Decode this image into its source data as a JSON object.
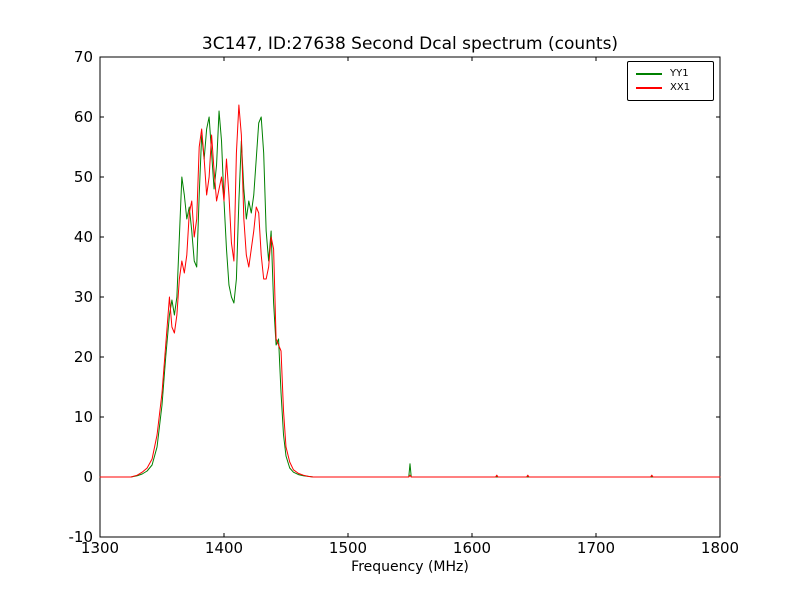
{
  "chart_data": {
    "type": "line",
    "title": "3C147, ID:27638 Second Dcal spectrum (counts)",
    "xlabel": "Frequency (MHz)",
    "ylabel": "",
    "xlim": [
      1300,
      1800
    ],
    "ylim": [
      -10,
      70
    ],
    "xticks": [
      1300,
      1400,
      1500,
      1600,
      1700,
      1800
    ],
    "yticks": [
      -10,
      0,
      10,
      20,
      30,
      40,
      50,
      60,
      70
    ],
    "grid": false,
    "legend_position": "upper right",
    "axis_color": "#000000",
    "x": [
      1300,
      1305,
      1310,
      1315,
      1320,
      1325,
      1330,
      1334,
      1338,
      1342,
      1346,
      1350,
      1353,
      1356,
      1358,
      1360,
      1362,
      1364,
      1366,
      1368,
      1370,
      1372,
      1374,
      1376,
      1378,
      1380,
      1382,
      1384,
      1386,
      1388,
      1390,
      1392,
      1394,
      1396,
      1398,
      1400,
      1402,
      1404,
      1406,
      1408,
      1410,
      1412,
      1414,
      1416,
      1418,
      1420,
      1422,
      1424,
      1426,
      1428,
      1430,
      1432,
      1434,
      1436,
      1438,
      1440,
      1442,
      1444,
      1446,
      1448,
      1450,
      1453,
      1456,
      1460,
      1464,
      1468,
      1472,
      1480,
      1500,
      1520,
      1540,
      1549,
      1550,
      1551,
      1560,
      1600,
      1619,
      1620,
      1621,
      1644,
      1645,
      1646,
      1700,
      1744,
      1745,
      1746,
      1800
    ],
    "series": [
      {
        "name": "YY1",
        "color": "#008000",
        "values": [
          0,
          0,
          0,
          0,
          0,
          0,
          0.2,
          0.5,
          1,
          2,
          5,
          12,
          20,
          27,
          29.5,
          27,
          30,
          40,
          50,
          47,
          43,
          45,
          41,
          36,
          35,
          47,
          57,
          53,
          58,
          60,
          54,
          48,
          52,
          61,
          56,
          46,
          38,
          32,
          30,
          29,
          33,
          46,
          56,
          48,
          43,
          46,
          44,
          47,
          53,
          59,
          60,
          54,
          41,
          36,
          41,
          29,
          22,
          23,
          14,
          7,
          3.5,
          1.5,
          0.8,
          0.4,
          0.2,
          0.1,
          0,
          0,
          0,
          0,
          0,
          0,
          2.2,
          0,
          0,
          0,
          0,
          0,
          0,
          0,
          0,
          0,
          0,
          0,
          0,
          0,
          0
        ]
      },
      {
        "name": "XX1",
        "color": "#ff0000",
        "values": [
          0,
          0,
          0,
          0,
          0,
          0,
          0.3,
          0.8,
          1.5,
          3,
          7,
          14,
          22,
          30,
          25,
          24,
          27,
          33,
          36,
          34,
          37,
          44,
          46,
          40,
          43,
          55,
          58,
          53,
          47,
          50,
          57,
          51,
          46,
          48,
          50,
          46,
          53,
          47,
          39,
          36,
          54,
          62,
          57,
          43,
          37,
          35,
          38,
          41,
          45,
          44,
          37,
          33,
          33,
          35,
          40,
          38,
          23,
          22,
          21,
          11,
          5,
          2.5,
          1.2,
          0.6,
          0.3,
          0.1,
          0,
          0,
          0,
          0,
          0,
          0,
          0.3,
          0,
          0,
          0,
          0,
          0.3,
          0,
          0,
          0.3,
          0,
          0,
          0,
          0.3,
          0,
          0
        ]
      }
    ]
  }
}
